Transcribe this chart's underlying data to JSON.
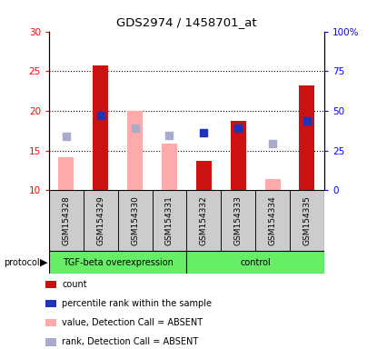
{
  "title": "GDS2974 / 1458701_at",
  "samples": [
    "GSM154328",
    "GSM154329",
    "GSM154330",
    "GSM154331",
    "GSM154332",
    "GSM154333",
    "GSM154334",
    "GSM154335"
  ],
  "bar_bottom": 10,
  "ylim_left": [
    10,
    30
  ],
  "ylim_right": [
    0,
    100
  ],
  "yticks_left": [
    10,
    15,
    20,
    25,
    30
  ],
  "yticks_right": [
    0,
    25,
    50,
    75,
    100
  ],
  "ytick_labels_left": [
    "10",
    "15",
    "20",
    "25",
    "30"
  ],
  "ytick_labels_right": [
    "0",
    "25",
    "50",
    "75",
    "100%"
  ],
  "red_bars": [
    null,
    25.7,
    null,
    null,
    13.7,
    18.7,
    null,
    23.2
  ],
  "pink_bars": [
    14.2,
    null,
    20.0,
    15.9,
    null,
    null,
    11.4,
    null
  ],
  "blue_squares": [
    null,
    19.4,
    null,
    null,
    17.3,
    17.8,
    null,
    18.7
  ],
  "lavender_squares": [
    16.8,
    null,
    17.8,
    16.9,
    null,
    null,
    15.9,
    null
  ],
  "red_color": "#cc1111",
  "pink_color": "#ffaaaa",
  "blue_color": "#2233bb",
  "lavender_color": "#aaaacc",
  "bar_width": 0.45,
  "square_size": 30,
  "legend_items": [
    {
      "label": "count",
      "color": "#cc1111"
    },
    {
      "label": "percentile rank within the sample",
      "color": "#2233bb"
    },
    {
      "label": "value, Detection Call = ABSENT",
      "color": "#ffaaaa"
    },
    {
      "label": "rank, Detection Call = ABSENT",
      "color": "#aaaacc"
    }
  ],
  "tgf_label": "TGF-beta overexpression",
  "ctrl_label": "control",
  "protocol_label": "protocol",
  "green_color": "#66ee66",
  "gray_color": "#cccccc",
  "n_tgf": 4,
  "n_ctrl": 4
}
